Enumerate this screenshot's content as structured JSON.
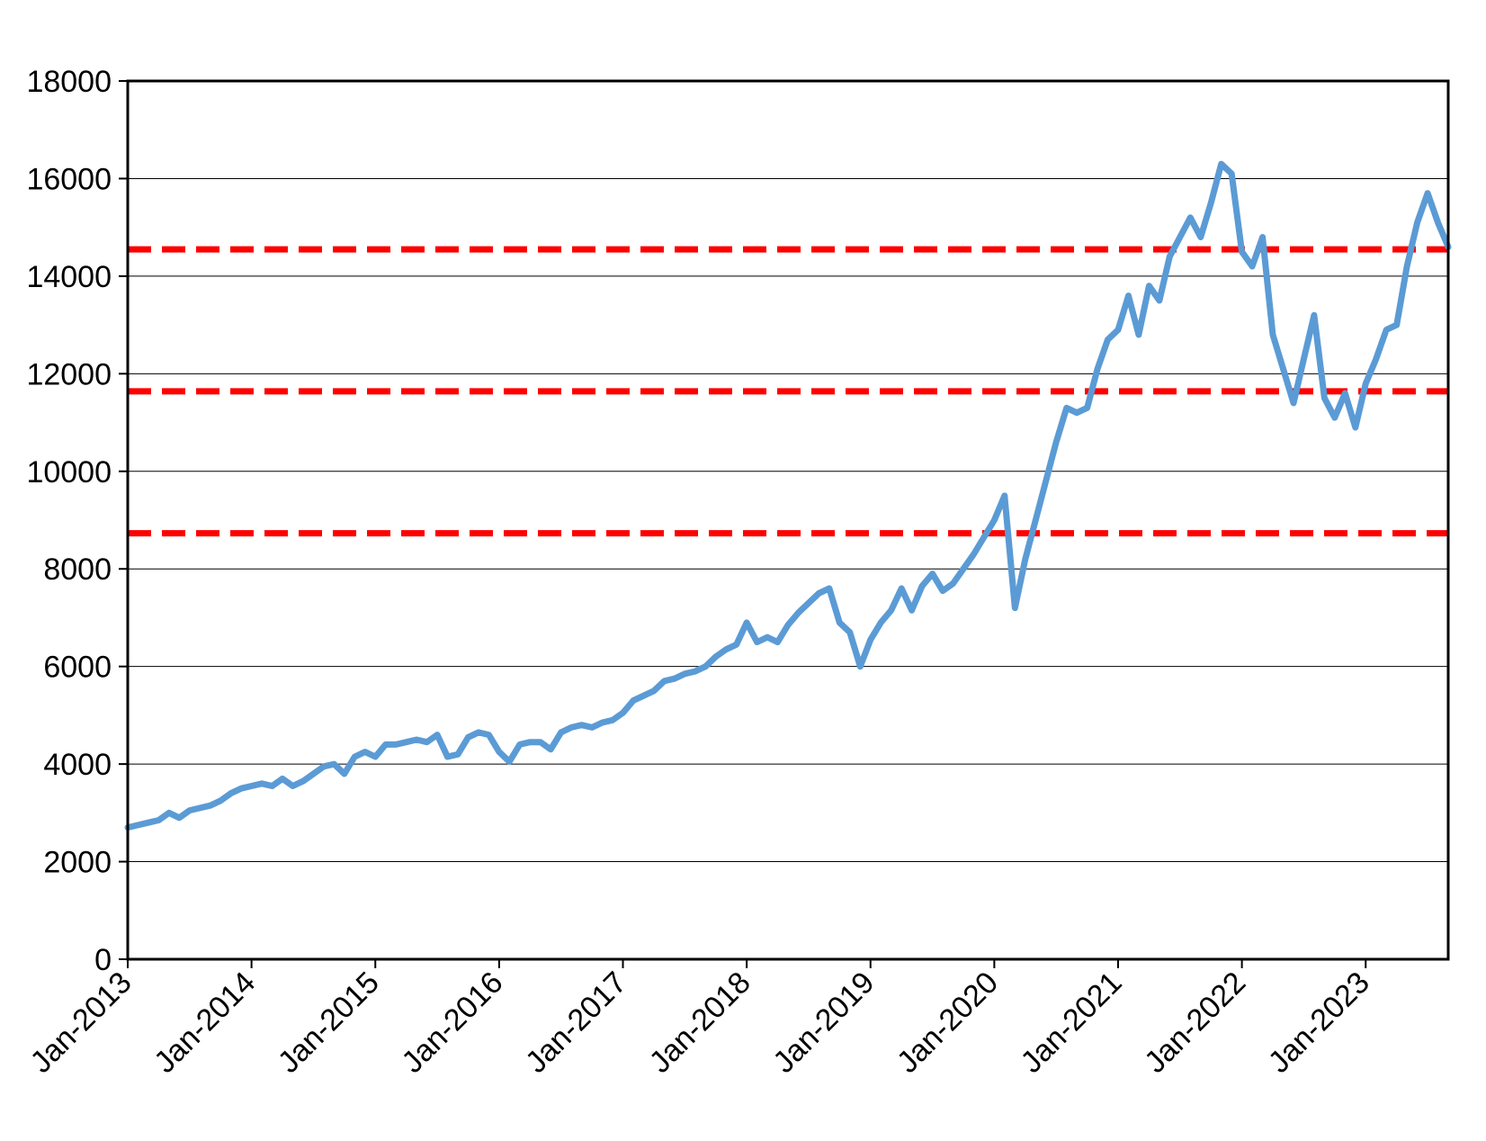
{
  "chart_data": {
    "type": "line",
    "title": "",
    "xlabel": "",
    "ylabel": "",
    "ylim": [
      0,
      18000
    ],
    "yticks": [
      0,
      2000,
      4000,
      6000,
      8000,
      10000,
      12000,
      14000,
      16000,
      18000
    ],
    "xlim": [
      "2013-01",
      "2023-09"
    ],
    "xtick_labels": [
      "Jan-2013",
      "Jan-2014",
      "Jan-2015",
      "Jan-2016",
      "Jan-2017",
      "Jan-2018",
      "Jan-2019",
      "Jan-2020",
      "Jan-2021",
      "Jan-2022",
      "Jan-2023"
    ],
    "grid": "horizontal",
    "legend": "none",
    "series": [
      {
        "color": "#5b9bd5",
        "points": [
          [
            "2013-01",
            2700
          ],
          [
            "2013-02",
            2750
          ],
          [
            "2013-03",
            2800
          ],
          [
            "2013-04",
            2850
          ],
          [
            "2013-05",
            3000
          ],
          [
            "2013-06",
            2900
          ],
          [
            "2013-07",
            3050
          ],
          [
            "2013-08",
            3100
          ],
          [
            "2013-09",
            3150
          ],
          [
            "2013-10",
            3250
          ],
          [
            "2013-11",
            3400
          ],
          [
            "2013-12",
            3500
          ],
          [
            "2014-01",
            3550
          ],
          [
            "2014-02",
            3600
          ],
          [
            "2014-03",
            3550
          ],
          [
            "2014-04",
            3700
          ],
          [
            "2014-05",
            3550
          ],
          [
            "2014-06",
            3650
          ],
          [
            "2014-07",
            3800
          ],
          [
            "2014-08",
            3950
          ],
          [
            "2014-09",
            4000
          ],
          [
            "2014-10",
            3800
          ],
          [
            "2014-11",
            4150
          ],
          [
            "2014-12",
            4250
          ],
          [
            "2015-01",
            4150
          ],
          [
            "2015-02",
            4400
          ],
          [
            "2015-03",
            4400
          ],
          [
            "2015-04",
            4450
          ],
          [
            "2015-05",
            4500
          ],
          [
            "2015-06",
            4450
          ],
          [
            "2015-07",
            4600
          ],
          [
            "2015-08",
            4150
          ],
          [
            "2015-09",
            4200
          ],
          [
            "2015-10",
            4550
          ],
          [
            "2015-11",
            4650
          ],
          [
            "2015-12",
            4600
          ],
          [
            "2016-01",
            4250
          ],
          [
            "2016-02",
            4050
          ],
          [
            "2016-03",
            4400
          ],
          [
            "2016-04",
            4450
          ],
          [
            "2016-05",
            4450
          ],
          [
            "2016-06",
            4300
          ],
          [
            "2016-07",
            4650
          ],
          [
            "2016-08",
            4750
          ],
          [
            "2016-09",
            4800
          ],
          [
            "2016-10",
            4750
          ],
          [
            "2016-11",
            4850
          ],
          [
            "2016-12",
            4900
          ],
          [
            "2017-01",
            5050
          ],
          [
            "2017-02",
            5300
          ],
          [
            "2017-03",
            5400
          ],
          [
            "2017-04",
            5500
          ],
          [
            "2017-05",
            5700
          ],
          [
            "2017-06",
            5750
          ],
          [
            "2017-07",
            5850
          ],
          [
            "2017-08",
            5900
          ],
          [
            "2017-09",
            6000
          ],
          [
            "2017-10",
            6200
          ],
          [
            "2017-11",
            6350
          ],
          [
            "2017-12",
            6450
          ],
          [
            "2018-01",
            6900
          ],
          [
            "2018-02",
            6500
          ],
          [
            "2018-03",
            6600
          ],
          [
            "2018-04",
            6500
          ],
          [
            "2018-05",
            6850
          ],
          [
            "2018-06",
            7100
          ],
          [
            "2018-07",
            7300
          ],
          [
            "2018-08",
            7500
          ],
          [
            "2018-09",
            7600
          ],
          [
            "2018-10",
            6900
          ],
          [
            "2018-11",
            6700
          ],
          [
            "2018-12",
            6000
          ],
          [
            "2019-01",
            6550
          ],
          [
            "2019-02",
            6900
          ],
          [
            "2019-03",
            7150
          ],
          [
            "2019-04",
            7600
          ],
          [
            "2019-05",
            7150
          ],
          [
            "2019-06",
            7650
          ],
          [
            "2019-07",
            7900
          ],
          [
            "2019-08",
            7550
          ],
          [
            "2019-09",
            7700
          ],
          [
            "2019-10",
            8000
          ],
          [
            "2019-11",
            8300
          ],
          [
            "2019-12",
            8650
          ],
          [
            "2020-01",
            9000
          ],
          [
            "2020-02",
            9500
          ],
          [
            "2020-03",
            7200
          ],
          [
            "2020-04",
            8200
          ],
          [
            "2020-05",
            9000
          ],
          [
            "2020-06",
            9800
          ],
          [
            "2020-07",
            10600
          ],
          [
            "2020-08",
            11300
          ],
          [
            "2020-09",
            11200
          ],
          [
            "2020-10",
            11300
          ],
          [
            "2020-11",
            12100
          ],
          [
            "2020-12",
            12700
          ],
          [
            "2021-01",
            12900
          ],
          [
            "2021-02",
            13600
          ],
          [
            "2021-03",
            12800
          ],
          [
            "2021-04",
            13800
          ],
          [
            "2021-05",
            13500
          ],
          [
            "2021-06",
            14400
          ],
          [
            "2021-07",
            14800
          ],
          [
            "2021-08",
            15200
          ],
          [
            "2021-09",
            14800
          ],
          [
            "2021-10",
            15500
          ],
          [
            "2021-11",
            16300
          ],
          [
            "2021-12",
            16100
          ],
          [
            "2022-01",
            14500
          ],
          [
            "2022-02",
            14200
          ],
          [
            "2022-03",
            14800
          ],
          [
            "2022-04",
            12800
          ],
          [
            "2022-05",
            12100
          ],
          [
            "2022-06",
            11400
          ],
          [
            "2022-07",
            12300
          ],
          [
            "2022-08",
            13200
          ],
          [
            "2022-09",
            11500
          ],
          [
            "2022-10",
            11100
          ],
          [
            "2022-11",
            11600
          ],
          [
            "2022-12",
            10900
          ],
          [
            "2023-01",
            11800
          ],
          [
            "2023-02",
            12300
          ],
          [
            "2023-03",
            12900
          ],
          [
            "2023-04",
            13000
          ],
          [
            "2023-05",
            14200
          ],
          [
            "2023-06",
            15100
          ],
          [
            "2023-07",
            15700
          ],
          [
            "2023-08",
            15100
          ],
          [
            "2023-09",
            14600
          ]
        ]
      }
    ],
    "reference_lines": [
      {
        "y": 8730,
        "color": "#ff0000",
        "style": "dashed"
      },
      {
        "y": 11640,
        "color": "#ff0000",
        "style": "dashed"
      },
      {
        "y": 14550,
        "color": "#ff0000",
        "style": "dashed"
      }
    ]
  }
}
